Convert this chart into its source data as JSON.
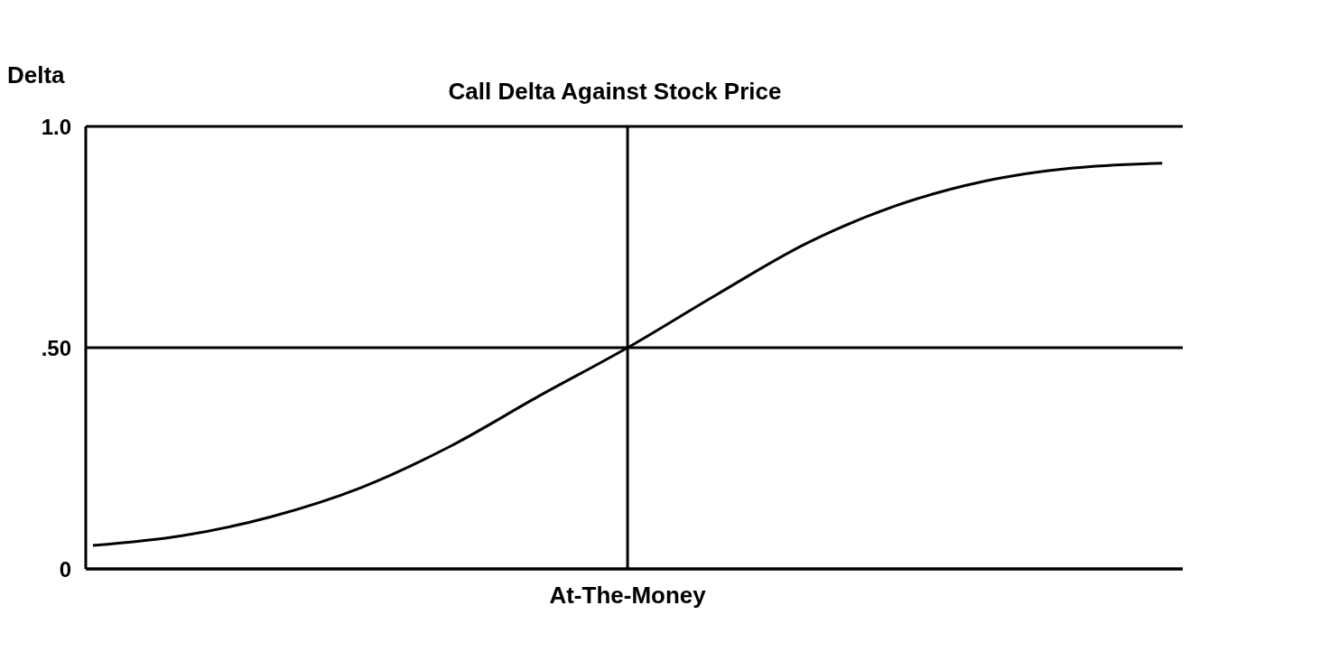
{
  "chart_data": {
    "type": "line",
    "title": "Call Delta Against Stock Price",
    "ylabel": "Delta",
    "categories": [
      null,
      null,
      null,
      null,
      null,
      null,
      "At-The-Money",
      null,
      null,
      null,
      null,
      null,
      null
    ],
    "series": [
      {
        "color": "#000000",
        "values": [
          0.053,
          0.075,
          0.118,
          0.183,
          0.276,
          0.39,
          0.5,
          0.62,
          0.735,
          0.82,
          0.876,
          0.906,
          0.917
        ]
      }
    ],
    "ylim": [
      0,
      1
    ],
    "yticks": [
      0,
      {
        "value": 0.5,
        "label": ".50"
      },
      {
        "value": 1,
        "label": "1.0"
      }
    ],
    "ref_lines": [
      {
        "axis": "x",
        "value": "At-The-Money",
        "color": "#000000"
      }
    ],
    "grid": "y",
    "legend": false,
    "marker": "none",
    "line_style": "solid"
  }
}
